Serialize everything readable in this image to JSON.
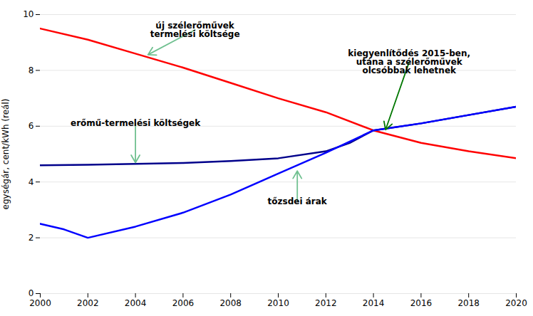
{
  "chart_data": {
    "type": "line",
    "ylabel": "egységár, cent/kWh (reál)",
    "xlim": [
      2000,
      2020
    ],
    "ylim": [
      0,
      10
    ],
    "xticks": [
      2000,
      2002,
      2004,
      2006,
      2008,
      2010,
      2012,
      2014,
      2016,
      2018,
      2020
    ],
    "yticks": [
      0,
      2,
      4,
      6,
      8,
      10
    ],
    "grid": true,
    "series": [
      {
        "color": "red",
        "x": [
          2000,
          2002,
          2004,
          2006,
          2008,
          2010,
          2012,
          2014,
          2016,
          2018,
          2020
        ],
        "values": [
          9.5,
          9.1,
          8.6,
          8.1,
          7.55,
          7.0,
          6.5,
          5.85,
          5.4,
          5.1,
          4.85
        ]
      },
      {
        "color": "#00008B",
        "x": [
          2000,
          2002,
          2004,
          2006,
          2008,
          2010,
          2012,
          2013,
          2014,
          2016,
          2018,
          2020
        ],
        "values": [
          4.6,
          4.62,
          4.65,
          4.68,
          4.75,
          4.85,
          5.1,
          5.4,
          5.85,
          6.1,
          6.4,
          6.7
        ]
      },
      {
        "color": "blue",
        "x": [
          2000,
          2001,
          2002,
          2004,
          2006,
          2008,
          2010,
          2012,
          2014,
          2016,
          2018,
          2020
        ],
        "values": [
          2.5,
          2.3,
          2.0,
          2.4,
          2.9,
          3.55,
          4.3,
          5.05,
          5.85,
          6.1,
          6.4,
          6.7
        ]
      }
    ],
    "annotations": [
      {
        "text": "új szélerőművek\ntermelési költsége",
        "xy": [
          2004.5,
          8.55
        ],
        "xytext": [
          2006.5,
          9.45
        ],
        "color": "#70c090"
      },
      {
        "text": "erőmű-termelési költségek",
        "xy": [
          2004.0,
          4.67
        ],
        "xytext": [
          2004.0,
          6.1
        ],
        "color": "#70c090"
      },
      {
        "text": "tőzsdei árak",
        "xy": [
          2010.8,
          4.42
        ],
        "xytext": [
          2010.8,
          3.3
        ],
        "color": "#70c090"
      },
      {
        "text": "kiegyenlítődés 2015-ben,\nutána a szélerőművek\nolcsóbbak lehetnek",
        "xy": [
          2014.5,
          5.85
        ],
        "xytext": [
          2015.5,
          8.3
        ],
        "color": "#007700"
      }
    ]
  }
}
